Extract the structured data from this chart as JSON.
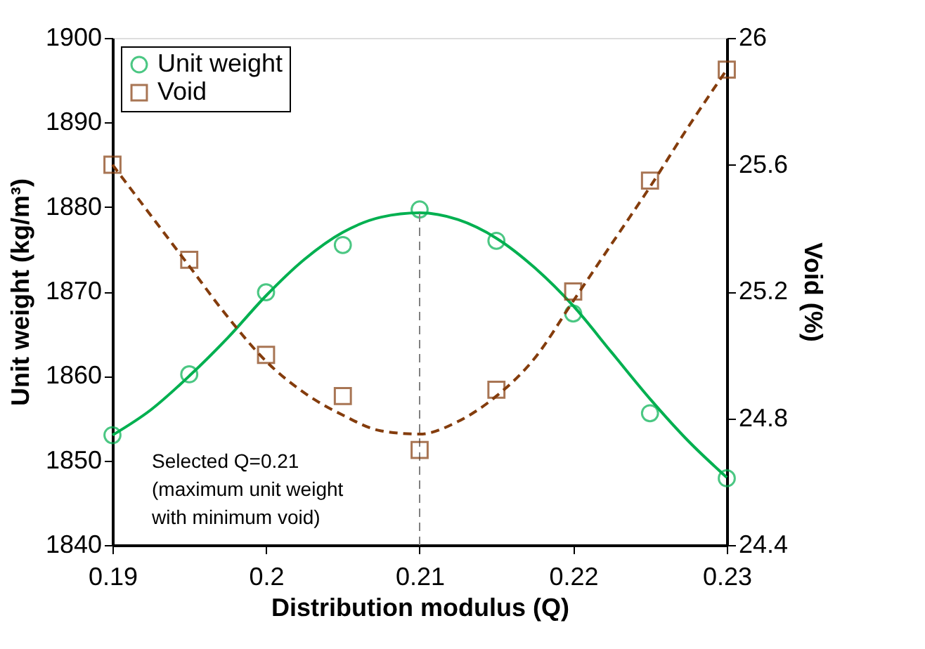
{
  "chart_data": {
    "type": "scatter",
    "xlabel": "Distribution modulus (Q)",
    "ylabel": "Unit weight (kg/m³)",
    "y2label": "Void (%)",
    "x": [
      0.19,
      0.195,
      0.2,
      0.205,
      0.21,
      0.215,
      0.22,
      0.225,
      0.23
    ],
    "series": [
      {
        "name": "Unit weight",
        "marker": "circle",
        "color": "#00b050",
        "values": [
          1853.0,
          1860.2,
          1869.9,
          1875.5,
          1879.7,
          1876.0,
          1867.4,
          1855.6,
          1847.9
        ]
      },
      {
        "name": "Void",
        "marker": "square",
        "axis": "y2",
        "color": "#843c0c",
        "values": [
          25.6,
          25.3,
          25.0,
          24.87,
          24.7,
          24.89,
          25.2,
          25.55,
          25.9
        ]
      },
      {
        "type": "line",
        "line_style": "solid",
        "color": "#00b050",
        "x": [
          0.19,
          0.1925,
          0.195,
          0.1975,
          0.2,
          0.2025,
          0.205,
          0.2075,
          0.21,
          0.2125,
          0.215,
          0.2175,
          0.22,
          0.2225,
          0.225,
          0.2275,
          0.23
        ],
        "values": [
          1853,
          1856,
          1860,
          1864.5,
          1869.5,
          1873.8,
          1877,
          1878.8,
          1879.3,
          1878.5,
          1876.3,
          1872.8,
          1868.3,
          1862.8,
          1857.3,
          1852.3,
          1848
        ]
      },
      {
        "type": "line",
        "line_style": "dashed",
        "axis": "y2",
        "color": "#843c0c",
        "x": [
          0.19,
          0.1925,
          0.195,
          0.1975,
          0.2,
          0.2025,
          0.205,
          0.2075,
          0.21,
          0.2125,
          0.215,
          0.2175,
          0.22,
          0.2225,
          0.225,
          0.2275,
          0.23
        ],
        "values": [
          25.6,
          25.44,
          25.28,
          25.12,
          24.98,
          24.88,
          24.81,
          24.76,
          24.75,
          24.79,
          24.87,
          24.99,
          25.17,
          25.35,
          25.53,
          25.72,
          25.9
        ]
      }
    ],
    "xlim": [
      0.19,
      0.23
    ],
    "xticks": [
      0.19,
      0.2,
      0.21,
      0.22,
      0.23
    ],
    "ylim": [
      1840,
      1900
    ],
    "yticks": [
      1840,
      1850,
      1860,
      1870,
      1880,
      1890,
      1900
    ],
    "y2lim": [
      24.4,
      26
    ],
    "y2ticks": [
      24.4,
      24.8,
      25.2,
      25.6,
      26
    ],
    "ref_lines": [
      {
        "axis": "x",
        "value": 0.21,
        "color": "#808080",
        "line_style": "dashed"
      }
    ],
    "annotations": [
      "Selected Q=0.21\n(maximum unit weight\nwith minimum void)"
    ],
    "grid": false,
    "legend": "top left"
  }
}
